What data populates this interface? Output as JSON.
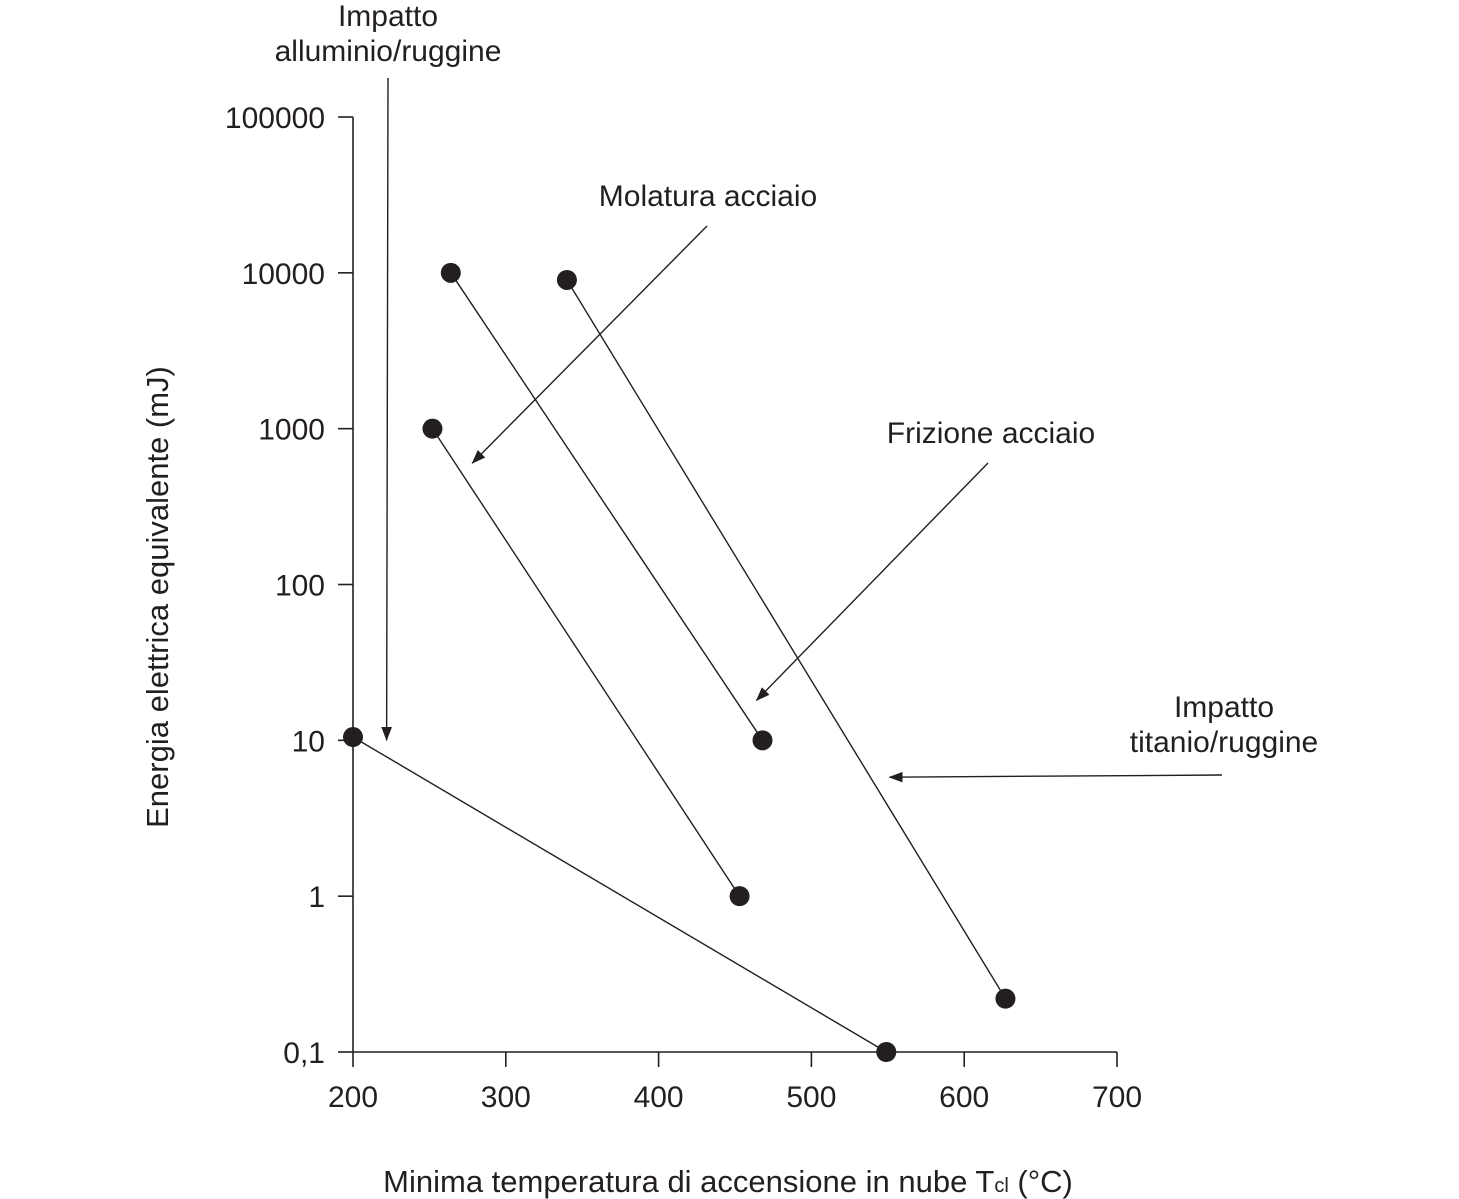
{
  "chart_data": {
    "type": "line",
    "title": "",
    "xlabel": "Minima temperatura di accensione in nube T",
    "xlabel_subscript": "cl",
    "xlabel_unit": " (°C)",
    "ylabel": "Energia elettrica equivalente (mJ)",
    "x_ticks": [
      200,
      300,
      400,
      500,
      600,
      700
    ],
    "x_tick_labels": [
      "200",
      "300",
      "400",
      "500",
      "600",
      "700"
    ],
    "xlim": [
      200,
      700
    ],
    "y_scale": "log",
    "y_ticks": [
      0.1,
      1,
      10,
      100,
      1000,
      10000,
      100000
    ],
    "y_tick_labels": [
      "0,1",
      "1",
      "10",
      "100",
      "1000",
      "10000",
      "100000"
    ],
    "ylim": [
      0.1,
      100000
    ],
    "grid": false,
    "series": [
      {
        "points": [
          [
            200,
            10.5
          ],
          [
            549,
            0.1
          ]
        ]
      },
      {
        "points": [
          [
            252,
            1000
          ],
          [
            453,
            1.0
          ]
        ]
      },
      {
        "points": [
          [
            264,
            10000
          ],
          [
            468,
            10
          ]
        ]
      },
      {
        "points": [
          [
            340,
            9000
          ],
          [
            627,
            0.22
          ]
        ]
      }
    ],
    "annotations": [
      {
        "lines": [
          "Impatto",
          "alluminio/ruggine"
        ],
        "points_to": [
          222,
          10
        ]
      },
      {
        "lines": [
          "Molatura acciaio"
        ],
        "points_to": [
          278,
          600
        ]
      },
      {
        "lines": [
          "Frizione acciaio"
        ],
        "points_to": [
          464,
          18
        ]
      },
      {
        "lines": [
          "Impatto",
          "titanio/ruggine"
        ],
        "points_to": [
          551,
          5.8
        ]
      }
    ],
    "colors": {
      "ink": "#231f20",
      "background": "#ffffff"
    }
  }
}
